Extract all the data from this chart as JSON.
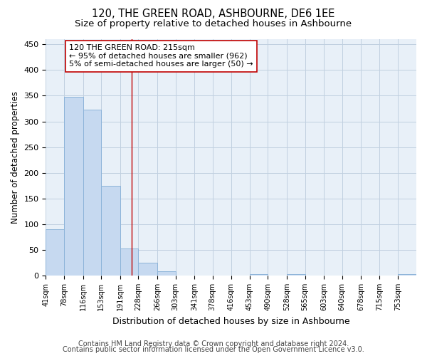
{
  "title": "120, THE GREEN ROAD, ASHBOURNE, DE6 1EE",
  "subtitle": "Size of property relative to detached houses in Ashbourne",
  "xlabel": "Distribution of detached houses by size in Ashbourne",
  "ylabel": "Number of detached properties",
  "bar_edges": [
    41,
    78,
    116,
    153,
    191,
    228,
    266,
    303,
    341,
    378,
    416,
    453,
    490,
    528,
    565,
    603,
    640,
    678,
    715,
    753,
    790
  ],
  "bar_heights": [
    90,
    348,
    323,
    175,
    53,
    25,
    8,
    0,
    0,
    0,
    0,
    3,
    0,
    3,
    0,
    0,
    0,
    0,
    0,
    3
  ],
  "bar_color": "#c6d9f0",
  "bar_edge_color": "#8db4d9",
  "vline_x": 215,
  "vline_color": "#c00000",
  "annotation_text": "120 THE GREEN ROAD: 215sqm\n← 95% of detached houses are smaller (962)\n5% of semi-detached houses are larger (50) →",
  "annotation_box_color": "white",
  "annotation_box_edge_color": "#c00000",
  "ylim": [
    0,
    460
  ],
  "yticks": [
    0,
    50,
    100,
    150,
    200,
    250,
    300,
    350,
    400,
    450
  ],
  "footer1": "Contains HM Land Registry data © Crown copyright and database right 2024.",
  "footer2": "Contains public sector information licensed under the Open Government Licence v3.0.",
  "bg_color": "#ffffff",
  "plot_bg_color": "#e8f0f8",
  "title_fontsize": 10.5,
  "subtitle_fontsize": 9.5,
  "annotation_fontsize": 8,
  "footer_fontsize": 7,
  "grid_color": "#c0d0e0"
}
